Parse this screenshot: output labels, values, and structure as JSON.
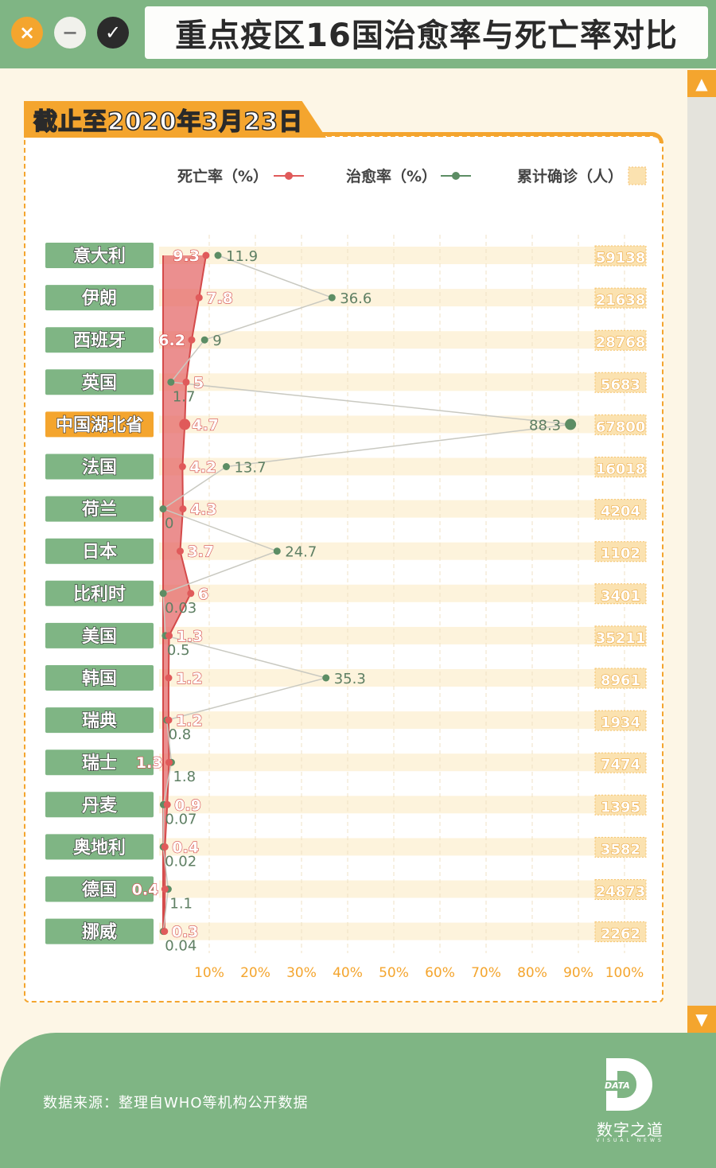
{
  "window": {
    "title": "重点疫区16国治愈率与死亡率对比",
    "close_icon": "×",
    "minimize_icon": "−",
    "ok_icon": "✓"
  },
  "date_banner": "截止至2020年3月23日",
  "scroll": {
    "up_icon": "▲",
    "down_icon": "▼"
  },
  "colors": {
    "green": "#7fb584",
    "orange": "#f4a52e",
    "death_red": "#e05a5a",
    "recovery_green": "#5c8d64",
    "cases_bar": "#fbe2b0"
  },
  "chart_data": {
    "type": "line",
    "legend": [
      "死亡率（%）",
      "治愈率（%）",
      "累计确诊（人）"
    ],
    "legend_position": "top",
    "categories": [
      "意大利",
      "伊朗",
      "西班牙",
      "英国",
      "中国湖北省",
      "法国",
      "荷兰",
      "日本",
      "比利时",
      "美国",
      "韩国",
      "瑞典",
      "瑞士",
      "丹麦",
      "奥地利",
      "德国",
      "挪威"
    ],
    "highlight_category": "中国湖北省",
    "series": [
      {
        "name": "死亡率（%）",
        "values": [
          9.3,
          7.8,
          6.2,
          5,
          4.7,
          4.2,
          4.3,
          3.7,
          6,
          1.3,
          1.2,
          1.2,
          1.3,
          0.9,
          0.4,
          0.4,
          0.3
        ],
        "labels": [
          "9.3",
          "7.8",
          "6.2",
          "5",
          "4.7",
          "4.2",
          "4.3",
          "3.7",
          "6",
          "1.3",
          "1.2",
          "1.2",
          "1.3",
          "0.9",
          "0.4",
          "0.4",
          "0.3"
        ]
      },
      {
        "name": "治愈率（%）",
        "values": [
          11.9,
          36.6,
          9,
          1.7,
          88.3,
          13.7,
          0,
          24.7,
          0.03,
          0.5,
          35.3,
          0.8,
          1.8,
          0.07,
          0.02,
          1.1,
          0.04
        ],
        "labels": [
          "11.9",
          "36.6",
          "9",
          "1.7",
          "88.3",
          "13.7",
          "0",
          "24.7",
          "0.03",
          "0.5",
          "35.3",
          "0.8",
          "1.8",
          "0.07",
          "0.02",
          "1.1",
          "0.04"
        ]
      },
      {
        "name": "累计确诊（人）",
        "values": [
          59138,
          21638,
          28768,
          5683,
          67800,
          16018,
          4204,
          1102,
          3401,
          35211,
          8961,
          1934,
          7474,
          1395,
          3582,
          24873,
          2262
        ],
        "labels": [
          "59138",
          "21638",
          "28768",
          "5683",
          "67800",
          "16018",
          "4204",
          "1102",
          "3401",
          "35211",
          "8961",
          "1934",
          "7474",
          "1395",
          "3582",
          "24873",
          "2262"
        ]
      }
    ],
    "x_ticks": [
      "10%",
      "20%",
      "30%",
      "40%",
      "50%",
      "60%",
      "70%",
      "80%",
      "90%",
      "100%"
    ],
    "xlim": [
      0,
      100
    ],
    "grid": "vertical dashed"
  },
  "footer": {
    "source": "数据来源：整理自WHO等机构公开数据",
    "logo_mark": "DATA",
    "logo_name": "数字之道",
    "logo_en": "VISUAL NEWS"
  }
}
